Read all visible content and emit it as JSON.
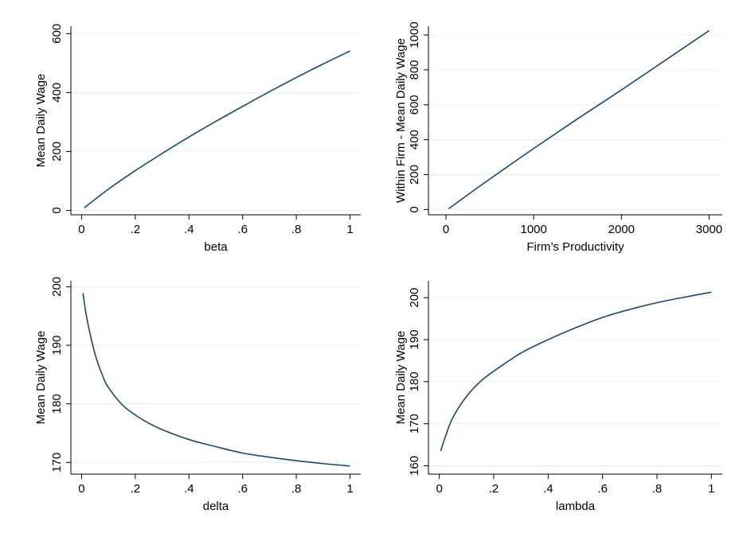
{
  "chart_data": [
    {
      "type": "line",
      "title": "",
      "xlabel": "beta",
      "ylabel": "Mean Daily Wage",
      "xlim": [
        0,
        1
      ],
      "ylim": [
        0,
        600
      ],
      "xticks": [
        0,
        0.2,
        0.4,
        0.6,
        0.8,
        1
      ],
      "xtick_labels": [
        "0",
        ".2",
        ".4",
        ".6",
        ".8",
        "1"
      ],
      "yticks": [
        0,
        200,
        400,
        600
      ],
      "ytick_labels": [
        "0",
        "200",
        "400",
        "600"
      ],
      "grid": true,
      "line_color": "#1a476f",
      "series": [
        {
          "x": [
            0.01,
            0.1,
            0.2,
            0.3,
            0.4,
            0.5,
            0.6,
            0.7,
            0.8,
            0.9,
            1.0
          ],
          "values": [
            9,
            72,
            135,
            193,
            249,
            302,
            353,
            403,
            451,
            497,
            541
          ]
        }
      ]
    },
    {
      "type": "line",
      "title": "",
      "xlabel": "Firm’s Productivity",
      "ylabel": "Within Firm - Mean Daily Wage",
      "xlim": [
        0,
        3000
      ],
      "ylim": [
        0,
        1000
      ],
      "xticks": [
        0,
        1000,
        2000,
        3000
      ],
      "xtick_labels": [
        "0",
        "1000",
        "2000",
        "3000"
      ],
      "yticks": [
        0,
        200,
        400,
        600,
        800,
        1000
      ],
      "ytick_labels": [
        "0",
        "200",
        "400",
        "600",
        "800",
        "1000"
      ],
      "grid": true,
      "line_color": "#1a476f",
      "series": [
        {
          "x": [
            30,
            500,
            1000,
            1500,
            2000,
            2500,
            3000
          ],
          "values": [
            5,
            175,
            350,
            520,
            685,
            855,
            1025
          ]
        }
      ]
    },
    {
      "type": "line",
      "title": "",
      "xlabel": "delta",
      "ylabel": "Mean Daily Wage",
      "xlim": [
        0,
        1
      ],
      "ylim": [
        170,
        200
      ],
      "xticks": [
        0,
        0.2,
        0.4,
        0.6,
        0.8,
        1
      ],
      "xtick_labels": [
        "0",
        ".2",
        ".4",
        ".6",
        ".8",
        "1"
      ],
      "yticks": [
        170,
        180,
        190,
        200
      ],
      "ytick_labels": [
        "170",
        "180",
        "190",
        "200"
      ],
      "grid": true,
      "line_color": "#1a476f",
      "series": [
        {
          "x": [
            0.005,
            0.02,
            0.05,
            0.08,
            0.1,
            0.15,
            0.2,
            0.25,
            0.3,
            0.4,
            0.5,
            0.6,
            0.7,
            0.8,
            0.9,
            1.0
          ],
          "values": [
            198.9,
            194.5,
            188.5,
            184.6,
            182.8,
            179.9,
            178.1,
            176.7,
            175.6,
            173.9,
            172.7,
            171.6,
            170.9,
            170.3,
            169.8,
            169.4
          ]
        }
      ]
    },
    {
      "type": "line",
      "title": "",
      "xlabel": "lambda",
      "ylabel": "Mean Daily Wage",
      "xlim": [
        0,
        1
      ],
      "ylim": [
        160,
        200
      ],
      "xticks": [
        0,
        0.2,
        0.4,
        0.6,
        0.8,
        1
      ],
      "xtick_labels": [
        "0",
        ".2",
        ".4",
        ".6",
        ".8",
        "1"
      ],
      "yticks": [
        160,
        170,
        180,
        190,
        200
      ],
      "ytick_labels": [
        "160",
        "170",
        "180",
        "190",
        "200"
      ],
      "grid": true,
      "line_color": "#1a476f",
      "series": [
        {
          "x": [
            0.005,
            0.02,
            0.05,
            0.1,
            0.15,
            0.2,
            0.3,
            0.4,
            0.5,
            0.6,
            0.7,
            0.8,
            0.9,
            1.0
          ],
          "values": [
            163.5,
            166.5,
            171.5,
            176.5,
            180.0,
            182.5,
            186.8,
            190.0,
            192.8,
            195.3,
            197.2,
            198.8,
            200.1,
            201.3
          ]
        }
      ]
    }
  ]
}
